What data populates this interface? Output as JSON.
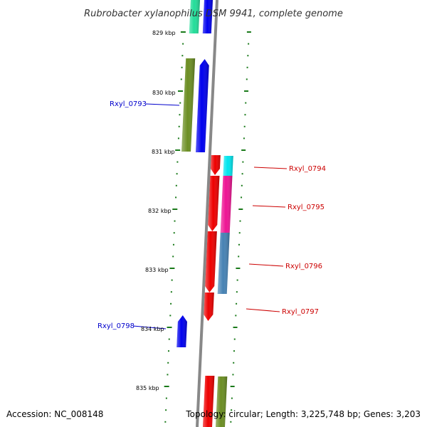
{
  "title": "Rubrobacter xylanophilus DSM 9941, complete genome",
  "footer": {
    "accession": "Accession: NC_008148",
    "topology": "Topology: circular; Length: 3,225,748 bp; Genes: 3,203"
  },
  "colors": {
    "backbone": "#888888",
    "tick": "#1a7a1a",
    "forward_label": "#0000cc",
    "reverse_label": "#cc0000"
  },
  "kbp_labels": [
    "829 kbp",
    "830 kbp",
    "831 kbp",
    "832 kbp",
    "833 kbp",
    "834 kbp",
    "835 kbp"
  ],
  "gene_labels": [
    {
      "name": "Rxyl_0793",
      "side": "left",
      "color": "#0000cc"
    },
    {
      "name": "Rxyl_0794",
      "side": "right",
      "color": "#cc0000"
    },
    {
      "name": "Rxyl_0795",
      "side": "right",
      "color": "#cc0000"
    },
    {
      "name": "Rxyl_0796",
      "side": "right",
      "color": "#cc0000"
    },
    {
      "name": "Rxyl_0797",
      "side": "right",
      "color": "#cc0000"
    },
    {
      "name": "Rxyl_0798",
      "side": "left",
      "color": "#0000cc"
    }
  ],
  "features": [
    {
      "kind": "cog",
      "color": "#22dd99"
    },
    {
      "kind": "gene",
      "color": "#0000ee"
    },
    {
      "kind": "cog",
      "color": "#6b8e23"
    },
    {
      "kind": "gene",
      "color": "#0000ee"
    },
    {
      "kind": "gene",
      "color": "#ee0000"
    },
    {
      "kind": "cog",
      "color": "#00e5ee"
    },
    {
      "kind": "gene",
      "color": "#ee0000"
    },
    {
      "kind": "cog",
      "color": "#ee1493"
    },
    {
      "kind": "gene",
      "color": "#ee0000"
    },
    {
      "kind": "cog",
      "color": "#4682b4"
    },
    {
      "kind": "gene",
      "color": "#ee0000"
    },
    {
      "kind": "gene",
      "color": "#0000ee"
    },
    {
      "kind": "gene",
      "color": "#ee0000"
    },
    {
      "kind": "cog",
      "color": "#6b8e23"
    }
  ]
}
